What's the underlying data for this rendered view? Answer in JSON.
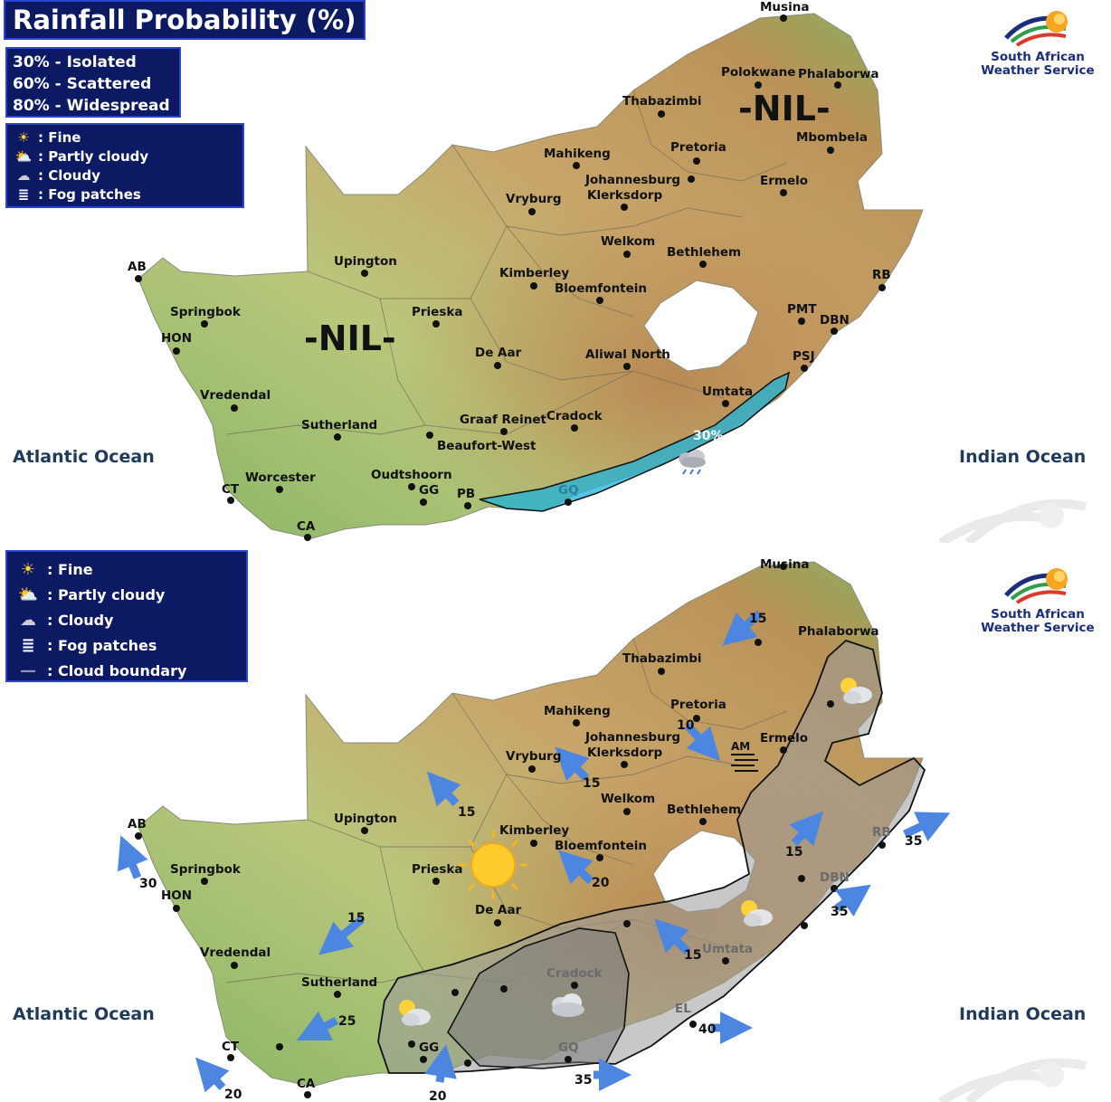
{
  "top": {
    "title": "Rainfall Probability (%)",
    "probabilities": [
      "30% - Isolated",
      "60% - Scattered",
      "80% - Widespread"
    ],
    "legend": [
      {
        "icon": "sun-icon",
        "label": ": Fine"
      },
      {
        "icon": "partly-cloudy-icon",
        "label": ": Partly cloudy"
      },
      {
        "icon": "cloudy-icon",
        "label": ": Cloudy"
      },
      {
        "icon": "fog-icon",
        "label": ": Fog patches"
      }
    ],
    "nil_label": "-NIL-",
    "rain_area_label": "30%",
    "accent_color": "#1fb3d8"
  },
  "bottom": {
    "legend": [
      {
        "icon": "sun-icon",
        "label": ": Fine"
      },
      {
        "icon": "partly-cloudy-icon",
        "label": ": Partly cloudy"
      },
      {
        "icon": "cloudy-icon",
        "label": ": Cloudy"
      },
      {
        "icon": "fog-icon",
        "label": ": Fog patches"
      },
      {
        "icon": "cloud-boundary-icon",
        "label": ": Cloud boundary"
      }
    ],
    "fog_note": "AM",
    "wind_speeds": [
      "15",
      "10",
      "15",
      "15",
      "20",
      "15",
      "15",
      "35",
      "35",
      "30",
      "15",
      "25",
      "20",
      "20",
      "40",
      "35"
    ]
  },
  "logo": {
    "line1": "South African",
    "line2": "Weather Service"
  },
  "oceans": {
    "west": "Atlantic Ocean",
    "east": "Indian Ocean"
  },
  "cities": {
    "musina": "Musina",
    "polokwane": "Polokwane",
    "phalaborwa": "Phalaborwa",
    "thabazimbi": "Thabazimbi",
    "mbombela": "Mbombela",
    "mahikeng": "Mahikeng",
    "pretoria": "Pretoria",
    "johannesburg": "Johannesburg",
    "klerksdorp": "Klerksdorp",
    "ermelo": "Ermelo",
    "vryburg": "Vryburg",
    "welkom": "Welkom",
    "bethlehem": "Bethlehem",
    "kimberley": "Kimberley",
    "bloemfontein": "Bloemfontein",
    "upington": "Upington",
    "ab": "AB",
    "springbok": "Springbok",
    "hon": "HON",
    "prieska": "Prieska",
    "rb": "RB",
    "pmt": "PMT",
    "dbn": "DBN",
    "de_aar": "De Aar",
    "aliwal_north": "Aliwal North",
    "psj": "PSJ",
    "vredendal": "Vredendal",
    "umtata": "Umtata",
    "sutherland": "Sutherland",
    "graaf_reinet": "Graaf Reinet",
    "cradock": "Cradock",
    "beaufort_west": "Beaufort-West",
    "worcester": "Worcester",
    "oudtshoorn": "Oudtshoorn",
    "ct": "CT",
    "gg": "GG",
    "pb": "PB",
    "gq": "GQ",
    "el": "EL",
    "ca": "CA"
  },
  "colors": {
    "panel_bg": "#0b1a63",
    "panel_border": "#2a45c9",
    "land_low": "#8fb86a",
    "land_high": "#c9a36a",
    "cloud_fill": "#9a9a9a"
  }
}
